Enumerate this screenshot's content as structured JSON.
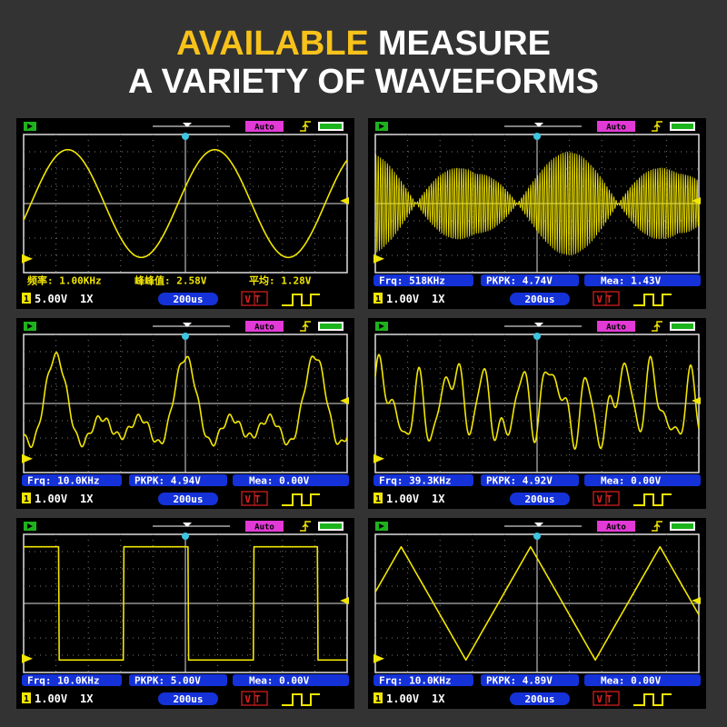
{
  "title": {
    "highlight": "AVAILABLE",
    "rest": "MEASURE",
    "line2": "A VARIETY OF WAVEFORMS"
  },
  "screens": [
    {
      "mode": "Auto",
      "frequency": "频率: 1.00KHz",
      "pkpk": "峰峰值: 2.58V",
      "mean": "平均: 1.28V",
      "channel": "1",
      "volts": "5.00V",
      "probe": "1X",
      "time": "200us",
      "trigger": "VT"
    },
    {
      "mode": "Auto",
      "frequency": "Frq: 518KHz",
      "pkpk": "PKPK: 4.74V",
      "mean": "Mea: 1.43V",
      "channel": "1",
      "volts": "1.00V",
      "probe": "1X",
      "time": "200us",
      "trigger": "VT"
    },
    {
      "mode": "Auto",
      "frequency": "Frq: 10.0KHz",
      "pkpk": "PKPK: 4.94V",
      "mean": "Mea: 0.00V",
      "channel": "1",
      "volts": "1.00V",
      "probe": "1X",
      "time": "200us",
      "trigger": "VT"
    },
    {
      "mode": "Auto",
      "frequency": "Frq: 39.3KHz",
      "pkpk": "PKPK: 4.92V",
      "mean": "Mea: 0.00V",
      "channel": "1",
      "volts": "1.00V",
      "probe": "1X",
      "time": "200us",
      "trigger": "VT"
    },
    {
      "mode": "Auto",
      "frequency": "Frq: 10.0KHz",
      "pkpk": "PKPK: 5.00V",
      "mean": "Mea: 0.00V",
      "channel": "1",
      "volts": "1.00V",
      "probe": "1X",
      "time": "200us",
      "trigger": "VT"
    },
    {
      "mode": "Auto",
      "frequency": "Frq: 10.0KHz",
      "pkpk": "PKPK: 4.89V",
      "mean": "Mea: 0.00V",
      "channel": "1",
      "volts": "1.00V",
      "probe": "1X",
      "time": "200us",
      "trigger": "VT"
    }
  ]
}
